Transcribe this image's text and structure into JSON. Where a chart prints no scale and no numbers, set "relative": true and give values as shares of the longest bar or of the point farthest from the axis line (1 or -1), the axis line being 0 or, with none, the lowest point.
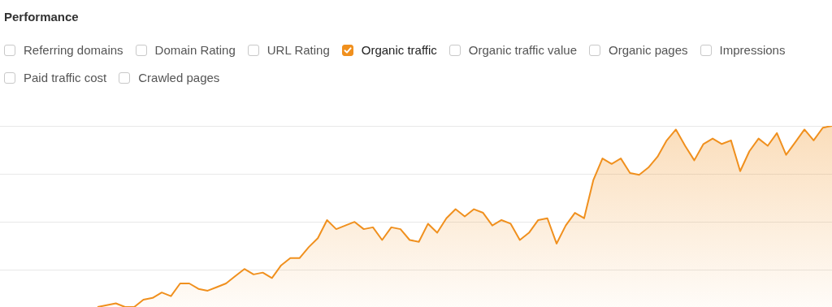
{
  "chart_data": {
    "type": "area",
    "title": "Performance",
    "relative": true,
    "grid": true,
    "legend": "top left",
    "marker": "none",
    "annotations": [
      "Referring domains",
      "Domain Rating",
      "URL Rating",
      "Organic traffic value",
      "Organic pages",
      "Impressions",
      "Paid traffic cost",
      "Crawled pages"
    ],
    "categories": [
      null,
      null,
      null,
      null,
      null,
      null,
      null,
      null,
      null,
      null,
      null,
      null,
      null,
      null,
      null,
      null,
      null,
      null,
      null,
      null,
      null,
      null,
      null,
      null,
      null,
      null,
      null,
      null,
      null,
      null,
      null,
      null,
      null,
      null,
      null,
      null,
      null,
      null,
      null,
      null,
      null,
      null,
      null,
      null,
      null,
      null,
      null,
      null,
      null,
      null,
      null,
      null,
      null,
      null,
      null,
      null,
      null,
      null,
      null,
      null,
      null,
      null,
      null,
      null,
      null,
      null,
      null,
      null,
      null,
      null,
      null,
      null,
      null,
      null,
      null,
      null,
      null,
      null,
      null,
      null,
      null
    ],
    "series": [
      {
        "name": "Organic traffic",
        "color": "#f0901e",
        "values": [
          0,
          0.01,
          0.02,
          0,
          0,
          0.04,
          0.05,
          0.08,
          0.06,
          0.13,
          0.13,
          0.1,
          0.09,
          0.11,
          0.13,
          0.17,
          0.21,
          0.18,
          0.19,
          0.16,
          0.23,
          0.27,
          0.27,
          0.33,
          0.38,
          0.48,
          0.43,
          0.45,
          0.47,
          0.43,
          0.44,
          0.37,
          0.44,
          0.43,
          0.37,
          0.36,
          0.46,
          0.41,
          0.49,
          0.54,
          0.5,
          0.54,
          0.52,
          0.45,
          0.48,
          0.46,
          0.37,
          0.41,
          0.48,
          0.49,
          0.35,
          0.45,
          0.52,
          0.49,
          0.7,
          0.82,
          0.79,
          0.82,
          0.74,
          0.73,
          0.77,
          0.83,
          0.92,
          0.98,
          0.89,
          0.81,
          0.9,
          0.93,
          0.9,
          0.92,
          0.75,
          0.86,
          0.93,
          0.89,
          0.96,
          0.84,
          0.91,
          0.98,
          0.92,
          0.99,
          1
        ]
      }
    ]
  }
}
